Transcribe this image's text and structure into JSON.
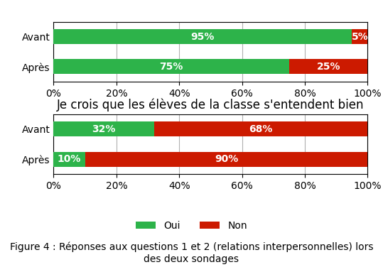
{
  "chart_data": [
    {
      "type": "bar",
      "orientation": "horizontal",
      "stacked": true,
      "data_labels": true,
      "grid": true,
      "categories": [
        "Avant",
        "Après"
      ],
      "series": [
        {
          "name": "Oui",
          "color": "#2db34a",
          "values": [
            95,
            75
          ],
          "value_labels": [
            "95%",
            "75%"
          ]
        },
        {
          "name": "Non",
          "color": "#cc1a00",
          "values": [
            5,
            25
          ],
          "value_labels": [
            "5%",
            "25%"
          ]
        }
      ],
      "xlim": [
        0,
        100
      ],
      "xticks": [
        {
          "value": 0,
          "label": "0%"
        },
        {
          "value": 20,
          "label": "20%"
        },
        {
          "value": 40,
          "label": "40%"
        },
        {
          "value": 60,
          "label": "60%"
        },
        {
          "value": 80,
          "label": "80%"
        },
        {
          "value": 100,
          "label": "100%"
        }
      ]
    },
    {
      "type": "bar",
      "orientation": "horizontal",
      "stacked": true,
      "data_labels": true,
      "grid": true,
      "title": "Je crois que les élèves de la classe s'entendent bien",
      "categories": [
        "Avant",
        "Après"
      ],
      "series": [
        {
          "name": "Oui",
          "color": "#2db34a",
          "values": [
            32,
            10
          ],
          "value_labels": [
            "32%",
            "10%"
          ]
        },
        {
          "name": "Non",
          "color": "#cc1a00",
          "values": [
            68,
            90
          ],
          "value_labels": [
            "68%",
            "90%"
          ]
        }
      ],
      "xlim": [
        0,
        100
      ],
      "xticks": [
        {
          "value": 0,
          "label": "0%"
        },
        {
          "value": 20,
          "label": "20%"
        },
        {
          "value": 40,
          "label": "40%"
        },
        {
          "value": 60,
          "label": "60%"
        },
        {
          "value": 80,
          "label": "80%"
        },
        {
          "value": 100,
          "label": "100%"
        }
      ],
      "legend": "lower center"
    }
  ],
  "caption": "Figure 4 : Réponses aux questions 1 et 2 (relations interpersonnelles) lors\ndes deux sondages"
}
